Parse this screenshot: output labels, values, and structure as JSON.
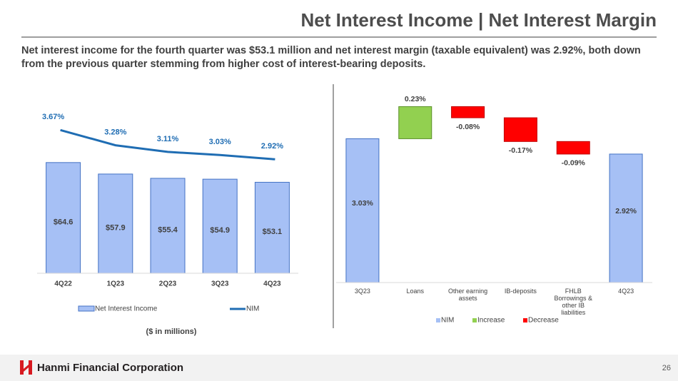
{
  "slide": {
    "title": "Net Interest Income | Net Interest Margin",
    "subtitle": "Net interest income for the fourth quarter was $53.1 million and net interest margin (taxable equivalent) was 2.92%, both down from the previous quarter stemming from higher cost of interest-bearing deposits.",
    "company": "Hanmi Financial Corporation",
    "page_number": "26"
  },
  "chart_data": [
    {
      "type": "bar_line",
      "categories": [
        "4Q22",
        "1Q23",
        "2Q23",
        "3Q23",
        "4Q23"
      ],
      "series": [
        {
          "name": "Net Interest Income",
          "color": "#a6c0f5",
          "values": [
            64.6,
            57.9,
            55.4,
            54.9,
            53.1
          ],
          "value_labels": [
            "$64.6",
            "$57.9",
            "$55.4",
            "$54.9",
            "$53.1"
          ]
        },
        {
          "name": "NIM",
          "color": "#1f6db3",
          "axis": "y2",
          "values": [
            3.67,
            3.28,
            3.11,
            3.03,
            2.92
          ],
          "value_labels": [
            "3.67%",
            "3.28%",
            "3.11%",
            "3.03%",
            "2.92%"
          ]
        }
      ],
      "ylim": [
        0,
        97
      ],
      "y2lim": [
        0,
        4.26
      ],
      "note": "($ in millions)"
    },
    {
      "type": "waterfall",
      "categories": [
        "3Q23",
        "Loans",
        "Other earning assets",
        "IB-deposits",
        "FHLB Borrowings & other IB liabilities",
        "4Q23"
      ],
      "values": [
        3.03,
        0.23,
        -0.08,
        -0.17,
        -0.09,
        2.92
      ],
      "value_labels": [
        "3.03%",
        "0.23%",
        "-0.08%",
        "-0.17%",
        "-0.09%",
        "2.92%"
      ],
      "ylim": [
        2.0,
        3.4
      ],
      "legend": [
        {
          "name": "NIM",
          "color": "#a6c0f5"
        },
        {
          "name": "Increase",
          "color": "#92d050"
        },
        {
          "name": "Decrease",
          "color": "#ff0000"
        }
      ]
    }
  ]
}
